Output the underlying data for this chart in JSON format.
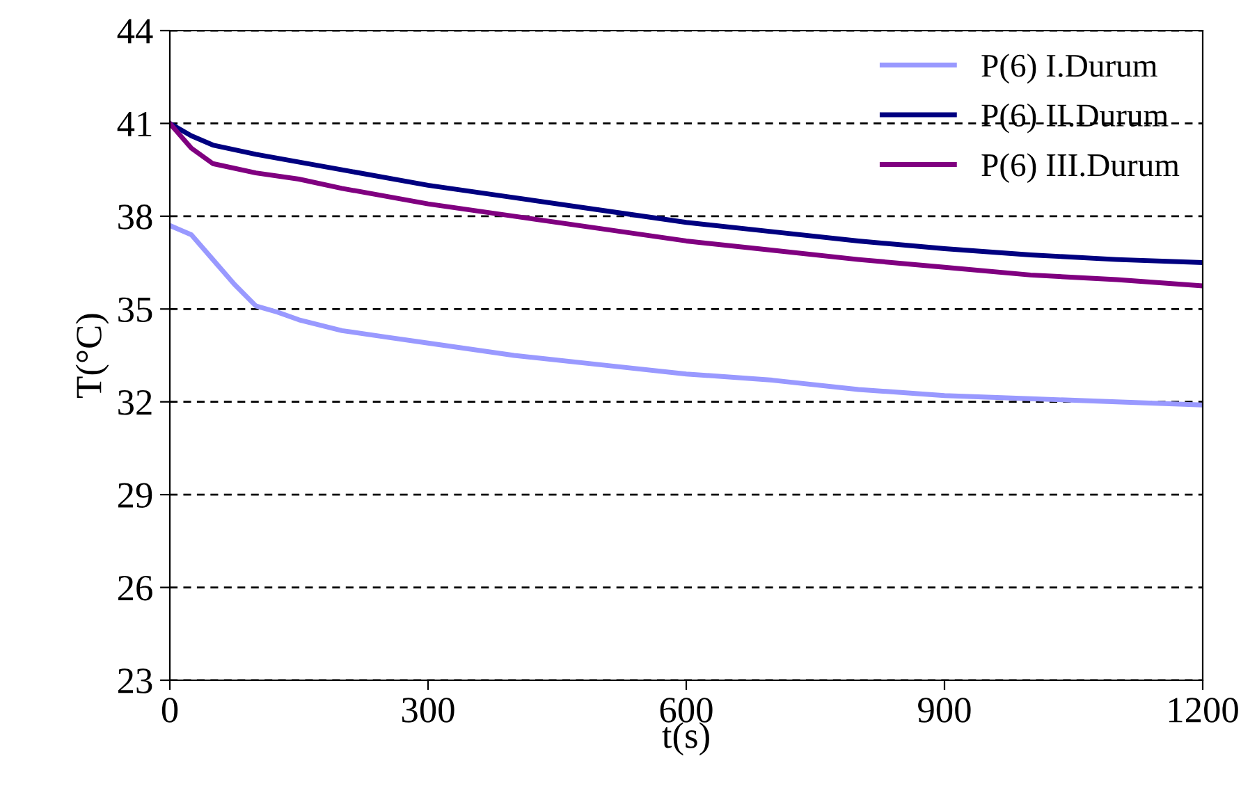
{
  "chart_data": {
    "type": "line",
    "xlabel": "t(s)",
    "ylabel": "T(°C)",
    "xlim": [
      0,
      1200
    ],
    "xticks": [
      0,
      300,
      600,
      900,
      1200
    ],
    "ylim": [
      23,
      44
    ],
    "yticks": [
      23,
      26,
      29,
      32,
      35,
      38,
      41,
      44
    ],
    "grid": "y",
    "legend": "top right",
    "line_style": "solid",
    "marker": "none",
    "series": [
      {
        "name": "P(6) I.Durum",
        "color": "#9999ff",
        "x": [
          0,
          25,
          50,
          75,
          100,
          125,
          150,
          200,
          250,
          300,
          400,
          500,
          600,
          700,
          800,
          900,
          1000,
          1100,
          1200
        ],
        "values": [
          37.7,
          37.4,
          36.6,
          35.8,
          35.1,
          34.9,
          34.65,
          34.3,
          34.1,
          33.9,
          33.5,
          33.2,
          32.9,
          32.7,
          32.4,
          32.2,
          32.1,
          32.0,
          31.9
        ]
      },
      {
        "name": "P(6) II.Durum",
        "color": "#000080",
        "x": [
          0,
          25,
          50,
          100,
          200,
          300,
          400,
          500,
          600,
          700,
          800,
          900,
          1000,
          1100,
          1200
        ],
        "values": [
          41.0,
          40.6,
          40.3,
          40.0,
          39.5,
          39.0,
          38.6,
          38.2,
          37.8,
          37.5,
          37.2,
          36.95,
          36.75,
          36.6,
          36.5
        ]
      },
      {
        "name": "P(6) III.Durum",
        "color": "#800080",
        "x": [
          0,
          25,
          50,
          100,
          150,
          200,
          300,
          400,
          500,
          600,
          700,
          800,
          900,
          1000,
          1100,
          1200
        ],
        "values": [
          41.0,
          40.2,
          39.7,
          39.4,
          39.2,
          38.9,
          38.4,
          38.0,
          37.6,
          37.2,
          36.9,
          36.6,
          36.35,
          36.1,
          35.95,
          35.75
        ]
      }
    ]
  }
}
